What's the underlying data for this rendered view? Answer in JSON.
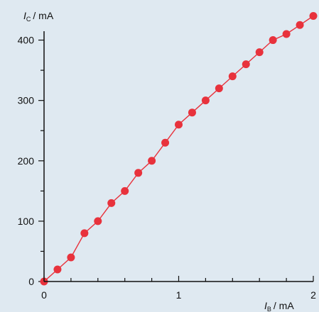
{
  "colors": {
    "background": "#dfe9f1",
    "axis": "#111111",
    "series": "#e8323c"
  },
  "chart_data": {
    "type": "scatter",
    "title": "",
    "xlabel": {
      "symbol": "I",
      "subscript": "B",
      "unit": "/  mA"
    },
    "ylabel": {
      "symbol": "I",
      "subscript": "C",
      "unit": "/  mA"
    },
    "xlim": [
      0,
      2
    ],
    "ylim": [
      0,
      450
    ],
    "x_ticks": [
      0,
      1,
      2
    ],
    "x_tick_labels": [
      "0",
      "1",
      "2"
    ],
    "x_minor_step": 0.2,
    "y_ticks": [
      0,
      100,
      200,
      300,
      400
    ],
    "y_tick_labels": [
      "0",
      "100",
      "200",
      "300",
      "400"
    ],
    "y_minor_step": 50,
    "grid": false,
    "series": [
      {
        "style": "markers-with-fit-line",
        "x": [
          0,
          0.1,
          0.2,
          0.3,
          0.4,
          0.5,
          0.6,
          0.7,
          0.8,
          0.9,
          1.0,
          1.1,
          1.2,
          1.3,
          1.4,
          1.5,
          1.6,
          1.7,
          1.8,
          1.9,
          2.0
        ],
        "y": [
          0,
          20,
          40,
          80,
          100,
          130,
          150,
          180,
          200,
          230,
          260,
          280,
          300,
          320,
          340,
          360,
          380,
          400,
          410,
          425,
          440
        ]
      }
    ]
  }
}
